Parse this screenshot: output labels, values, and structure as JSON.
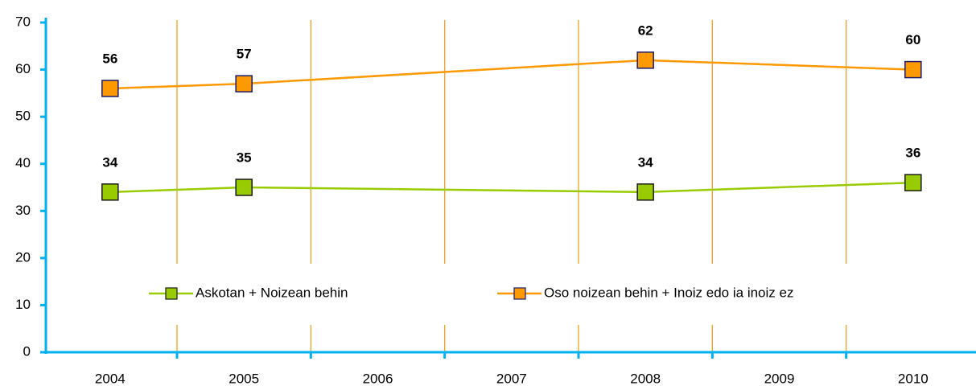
{
  "chart_data": {
    "type": "line",
    "x": [
      2004,
      2005,
      2008,
      2010
    ],
    "series": [
      {
        "name": "Askotan + Noizean behin",
        "color": "#99cc00",
        "values": [
          34,
          35,
          34,
          36
        ]
      },
      {
        "name": "Oso noizean behin + Inoiz edo ia inoiz ez",
        "color": "#ff9900",
        "values": [
          56,
          57,
          62,
          60
        ]
      }
    ],
    "xlim": [
      2003.52,
      2010.47
    ],
    "xticks": [
      2004,
      2005,
      2006,
      2007,
      2008,
      2009,
      2010
    ],
    "ylim": [
      0,
      70
    ],
    "yticks": [
      0,
      10,
      20,
      30,
      40,
      50,
      60,
      70
    ],
    "grid": true,
    "legend": "bottom"
  }
}
